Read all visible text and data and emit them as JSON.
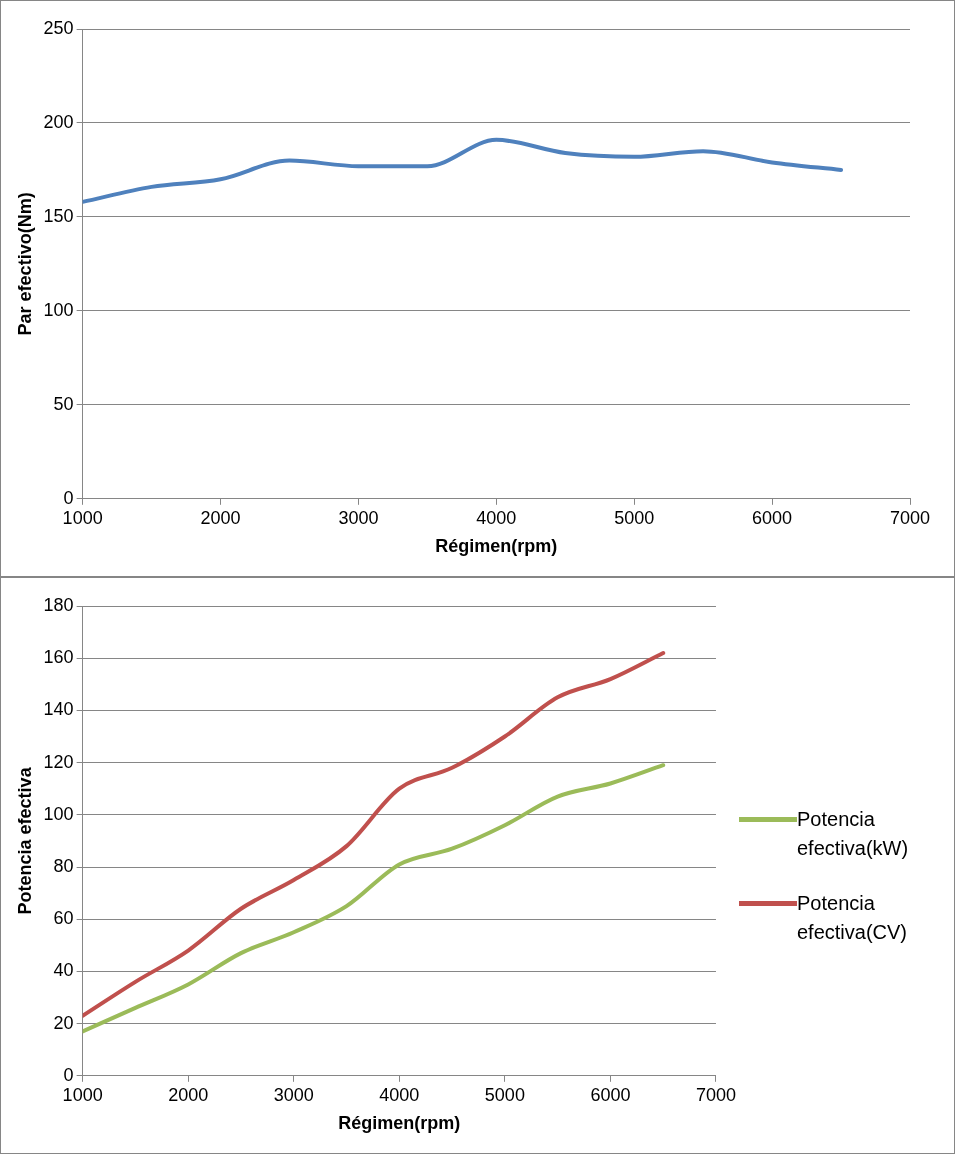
{
  "chart_data": [
    {
      "type": "line",
      "ylabel": "Par efectivo(Nm)",
      "xlabel": "Régimen(rpm)",
      "x": [
        1000,
        1500,
        2000,
        2500,
        3000,
        3500,
        4000,
        4500,
        5000,
        5500,
        6000,
        6500
      ],
      "values": [
        158,
        166,
        170,
        180,
        177,
        177,
        191,
        184,
        182,
        185,
        179,
        175
      ],
      "color": "#4f81bd",
      "xlim": [
        1000,
        7000
      ],
      "xticks": [
        1000,
        2000,
        3000,
        4000,
        5000,
        6000,
        7000
      ],
      "ylim": [
        0,
        250
      ],
      "yticks": [
        0,
        50,
        100,
        150,
        200,
        250
      ],
      "grid": "y",
      "marker": "none",
      "line_style": "solid"
    },
    {
      "type": "line",
      "ylabel": "Potencia efectiva",
      "xlabel": "Régimen(rpm)",
      "x": [
        1000,
        1500,
        2000,
        2500,
        3000,
        3500,
        4000,
        4500,
        5000,
        5500,
        6000,
        6500
      ],
      "series": [
        {
          "name": "Potencia efectiva(kW)",
          "color": "#9bbb59",
          "values": [
            17,
            26,
            35,
            47,
            55,
            65,
            81,
            87,
            96,
            107,
            112,
            119
          ]
        },
        {
          "name": "Potencia efectiva(CV)",
          "color": "#c0504d",
          "values": [
            23,
            36,
            48,
            64,
            75,
            88,
            110,
            118,
            130,
            145,
            152,
            162
          ]
        }
      ],
      "xlim": [
        1000,
        7000
      ],
      "xticks": [
        1000,
        2000,
        3000,
        4000,
        5000,
        6000,
        7000
      ],
      "ylim": [
        0,
        180
      ],
      "yticks": [
        0,
        20,
        40,
        60,
        80,
        100,
        120,
        140,
        160,
        180
      ],
      "grid": "y",
      "legend": "right",
      "marker": "none",
      "line_style": "solid"
    }
  ]
}
